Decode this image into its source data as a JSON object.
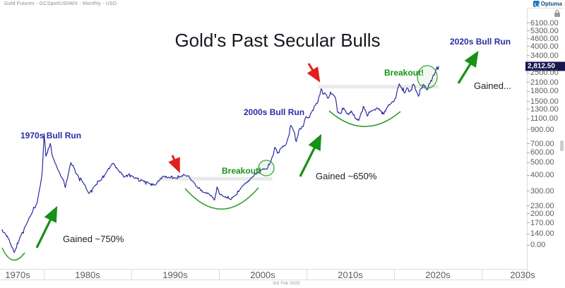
{
  "header": {
    "instrument_title": "Gold Futures - GCSpot/USNMX - Monthly - USD",
    "logo_text": "Optuma",
    "date_label": "3rd Feb 2025"
  },
  "chart_data": {
    "type": "line",
    "title": "Gold's Past Secular Bulls",
    "x_axis": {
      "labels": [
        "1970s",
        "1980s",
        "1990s",
        "2000s",
        "2010s",
        "2020s",
        "2030s"
      ],
      "range_years": [
        1975,
        2035
      ]
    },
    "y_axis": {
      "scale": "log",
      "tick_labels": [
        "6100.00",
        "5300.00",
        "4600.00",
        "4000.00",
        "3400.00",
        "2500.00",
        "2100.00",
        "1800.00",
        "1500.00",
        "1300.00",
        "1100.00",
        "900.00",
        "700.00",
        "600.00",
        "500.00",
        "400.00",
        "300.00",
        "230.00",
        "200.00",
        "170.00",
        "140.00",
        "0.00"
      ],
      "last_price": 2812.5,
      "last_price_label": "2,812.50"
    },
    "series": [
      {
        "name": "Gold Futures monthly close (USD)",
        "points": [
          [
            1975.17,
            150
          ],
          [
            1975.6,
            140
          ],
          [
            1976.0,
            128
          ],
          [
            1976.63,
            100
          ],
          [
            1977.3,
            132
          ],
          [
            1978.0,
            165
          ],
          [
            1978.6,
            200
          ],
          [
            1979.2,
            240
          ],
          [
            1979.6,
            330
          ],
          [
            1979.83,
            430
          ],
          [
            1980.04,
            843
          ],
          [
            1980.25,
            560
          ],
          [
            1980.5,
            640
          ],
          [
            1980.73,
            705
          ],
          [
            1981.0,
            560
          ],
          [
            1981.5,
            460
          ],
          [
            1982.2,
            370
          ],
          [
            1982.45,
            320
          ],
          [
            1983.1,
            500
          ],
          [
            1983.7,
            410
          ],
          [
            1984.5,
            350
          ],
          [
            1985.15,
            288
          ],
          [
            1985.8,
            330
          ],
          [
            1986.5,
            365
          ],
          [
            1987.0,
            405
          ],
          [
            1987.9,
            495
          ],
          [
            1988.5,
            435
          ],
          [
            1989.2,
            385
          ],
          [
            1989.7,
            408
          ],
          [
            1990.1,
            392
          ],
          [
            1990.6,
            378
          ],
          [
            1991.3,
            362
          ],
          [
            1992.0,
            345
          ],
          [
            1992.7,
            334
          ],
          [
            1993.3,
            372
          ],
          [
            1993.6,
            392
          ],
          [
            1994.3,
            384
          ],
          [
            1995.0,
            380
          ],
          [
            1995.6,
            388
          ],
          [
            1996.1,
            402
          ],
          [
            1996.8,
            368
          ],
          [
            1997.5,
            324
          ],
          [
            1998.2,
            294
          ],
          [
            1998.8,
            288
          ],
          [
            1999.5,
            256
          ],
          [
            1999.79,
            324
          ],
          [
            2000.1,
            284
          ],
          [
            2000.7,
            270
          ],
          [
            2001.3,
            258
          ],
          [
            2001.9,
            278
          ],
          [
            2002.5,
            316
          ],
          [
            2003.1,
            350
          ],
          [
            2003.9,
            392
          ],
          [
            2004.5,
            420
          ],
          [
            2004.9,
            442
          ],
          [
            2005.5,
            446
          ],
          [
            2005.95,
            512
          ],
          [
            2006.38,
            660
          ],
          [
            2006.7,
            592
          ],
          [
            2007.1,
            650
          ],
          [
            2007.6,
            682
          ],
          [
            2007.95,
            800
          ],
          [
            2008.2,
            975
          ],
          [
            2008.55,
            878
          ],
          [
            2008.83,
            728
          ],
          [
            2009.2,
            920
          ],
          [
            2009.6,
            952
          ],
          [
            2009.95,
            1140
          ],
          [
            2010.3,
            1118
          ],
          [
            2010.6,
            1240
          ],
          [
            2010.95,
            1392
          ],
          [
            2011.3,
            1482
          ],
          [
            2011.68,
            1880
          ],
          [
            2011.85,
            1720
          ],
          [
            2012.1,
            1742
          ],
          [
            2012.45,
            1580
          ],
          [
            2012.75,
            1772
          ],
          [
            2013.1,
            1662
          ],
          [
            2013.3,
            1590
          ],
          [
            2013.55,
            1232
          ],
          [
            2013.95,
            1212
          ],
          [
            2014.25,
            1330
          ],
          [
            2014.8,
            1180
          ],
          [
            2015.1,
            1262
          ],
          [
            2015.6,
            1098
          ],
          [
            2015.95,
            1062
          ],
          [
            2016.3,
            1242
          ],
          [
            2016.55,
            1362
          ],
          [
            2016.95,
            1150
          ],
          [
            2017.3,
            1252
          ],
          [
            2017.7,
            1292
          ],
          [
            2018.1,
            1332
          ],
          [
            2018.55,
            1252
          ],
          [
            2018.78,
            1192
          ],
          [
            2019.1,
            1302
          ],
          [
            2019.55,
            1422
          ],
          [
            2019.9,
            1482
          ],
          [
            2020.2,
            1592
          ],
          [
            2020.58,
            2052
          ],
          [
            2020.9,
            1882
          ],
          [
            2021.2,
            1742
          ],
          [
            2021.45,
            1902
          ],
          [
            2021.75,
            1782
          ],
          [
            2022.0,
            1832
          ],
          [
            2022.2,
            2042
          ],
          [
            2022.55,
            1812
          ],
          [
            2022.78,
            1642
          ],
          [
            2023.05,
            1872
          ],
          [
            2023.35,
            2032
          ],
          [
            2023.6,
            1922
          ],
          [
            2023.78,
            1842
          ],
          [
            2024.0,
            2062
          ],
          [
            2024.2,
            2182
          ],
          [
            2024.4,
            2332
          ],
          [
            2024.6,
            2402
          ],
          [
            2024.8,
            2652
          ],
          [
            2024.9,
            2782
          ],
          [
            2025.0,
            2642
          ],
          [
            2025.1,
            2812.5
          ]
        ]
      }
    ],
    "annotations": {
      "bull_runs": [
        "1970s Bull Run",
        "2000s Bull Run",
        "2020s Bull Run"
      ],
      "breakouts": [
        "Breakout!",
        "Breakout!"
      ],
      "gains": [
        "Gained ~750%",
        "Gained ~650%",
        "Gained..."
      ],
      "resistance_zones": [
        {
          "price": 375,
          "from_year": 1993.1,
          "to_year": 2006.1
        },
        {
          "price": 1950,
          "from_year": 2011.3,
          "to_year": 2025.1
        }
      ]
    },
    "colors": {
      "line": "#23239c",
      "bull_label": "#2b2ba6",
      "green": "#179117",
      "red": "#e01f1f",
      "badge_bg": "#171750",
      "resistance_band": "#e9e9e9"
    }
  }
}
